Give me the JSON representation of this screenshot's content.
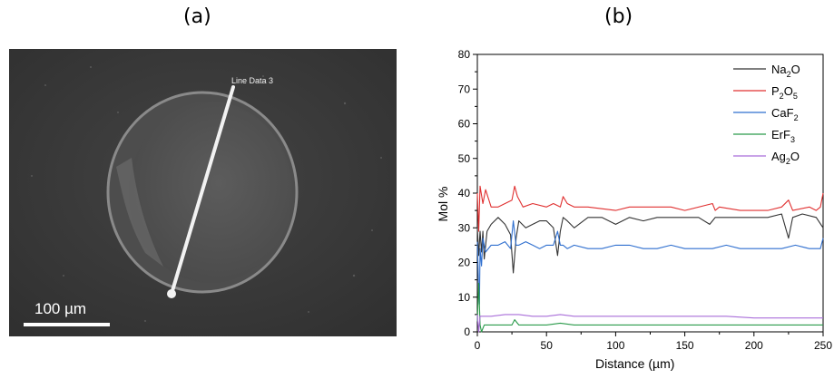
{
  "panels": {
    "a_label": "(a)",
    "b_label": "(b)"
  },
  "micrograph": {
    "line_label": "Line Data 3",
    "scale_bar_label": "100 µm",
    "colors": {
      "background": "#3a3a3a",
      "particle": "#555555",
      "line": "#f2f2f2"
    }
  },
  "chart_data": {
    "type": "line",
    "title": "",
    "xlabel": "Distance (µm)",
    "ylabel": "Mol %",
    "xlim": [
      0,
      250
    ],
    "ylim": [
      0,
      80
    ],
    "xticks": [
      0,
      50,
      100,
      150,
      200,
      250
    ],
    "yticks": [
      0,
      10,
      20,
      30,
      40,
      50,
      60,
      70,
      80
    ],
    "grid": false,
    "legend_position": "top-right",
    "series": [
      {
        "name": "Na2O",
        "name_base": "Na",
        "name_sub": "2",
        "name_tail": "O",
        "name_sub2": "",
        "color": "#333333",
        "x": [
          0,
          1,
          2,
          3,
          4,
          5,
          7,
          10,
          15,
          20,
          24,
          26,
          28,
          30,
          35,
          40,
          45,
          50,
          55,
          58,
          60,
          62,
          65,
          70,
          80,
          90,
          100,
          110,
          120,
          130,
          140,
          150,
          160,
          168,
          170,
          172,
          180,
          190,
          200,
          210,
          220,
          225,
          228,
          235,
          245,
          250
        ],
        "y": [
          30,
          22,
          29,
          23,
          29,
          21,
          29,
          31,
          33,
          31,
          28,
          17,
          27,
          32,
          30,
          31,
          32,
          32,
          30,
          22,
          29,
          33,
          32,
          30,
          33,
          33,
          31,
          33,
          32,
          33,
          33,
          33,
          33,
          31,
          32,
          33,
          33,
          33,
          33,
          33,
          34,
          27,
          33,
          34,
          33,
          30
        ]
      },
      {
        "name": "P2O5",
        "name_base": "P",
        "name_sub": "2",
        "name_tail": "O",
        "name_sub2": "5",
        "color": "#e03030",
        "x": [
          0,
          1,
          2,
          4,
          6,
          10,
          15,
          20,
          25,
          27,
          29,
          33,
          40,
          50,
          55,
          60,
          62,
          65,
          70,
          80,
          100,
          110,
          120,
          140,
          150,
          170,
          172,
          175,
          190,
          210,
          220,
          225,
          228,
          240,
          245,
          248,
          250
        ],
        "y": [
          40,
          29,
          42,
          37,
          41,
          36,
          36,
          37,
          38,
          42,
          39,
          36,
          37,
          36,
          37,
          36,
          39,
          37,
          36,
          36,
          35,
          36,
          36,
          36,
          35,
          37,
          35,
          36,
          35,
          35,
          36,
          38,
          35,
          36,
          35,
          36,
          40
        ]
      },
      {
        "name": "CaF2",
        "name_base": "CaF",
        "name_sub": "2",
        "name_tail": "",
        "name_sub2": "",
        "color": "#2f6fcf",
        "x": [
          0,
          1,
          1.5,
          2,
          3,
          4,
          6,
          10,
          15,
          20,
          24,
          26,
          28,
          30,
          35,
          40,
          45,
          50,
          55,
          58,
          60,
          62,
          65,
          70,
          80,
          90,
          100,
          110,
          120,
          130,
          140,
          150,
          160,
          170,
          180,
          190,
          200,
          210,
          220,
          230,
          240,
          248,
          250
        ],
        "y": [
          26,
          12,
          8,
          24,
          19,
          27,
          23,
          25,
          25,
          26,
          24,
          32,
          25,
          25,
          26,
          25,
          24,
          25,
          25,
          29,
          25,
          25,
          24,
          25,
          24,
          24,
          25,
          25,
          24,
          24,
          25,
          24,
          24,
          24,
          25,
          24,
          24,
          24,
          24,
          25,
          24,
          24,
          27
        ]
      },
      {
        "name": "ErF3",
        "name_base": "ErF",
        "name_sub": "3",
        "name_tail": "",
        "name_sub2": "",
        "color": "#2a9a4a",
        "x": [
          0,
          1,
          2,
          3,
          5,
          10,
          20,
          25,
          27,
          30,
          40,
          50,
          60,
          70,
          80,
          100,
          120,
          140,
          160,
          180,
          200,
          220,
          240,
          250
        ],
        "y": [
          3,
          14,
          2,
          0,
          2,
          2,
          2,
          2,
          3.5,
          2,
          2,
          2,
          2.5,
          2,
          2,
          2,
          2,
          2,
          2,
          2,
          2,
          2,
          2,
          2
        ]
      },
      {
        "name": "Ag2O",
        "name_base": "Ag",
        "name_sub": "2",
        "name_tail": "O",
        "name_sub2": "",
        "color": "#a96ed9",
        "x": [
          0,
          1,
          2,
          5,
          10,
          20,
          30,
          40,
          50,
          60,
          70,
          80,
          100,
          120,
          140,
          160,
          180,
          200,
          220,
          240,
          250
        ],
        "y": [
          5,
          0,
          4.5,
          4.5,
          4.5,
          5,
          5,
          4.5,
          4.5,
          5,
          4.5,
          4.5,
          4.5,
          4.5,
          4.5,
          4.5,
          4.5,
          4,
          4,
          4,
          4
        ]
      }
    ]
  }
}
